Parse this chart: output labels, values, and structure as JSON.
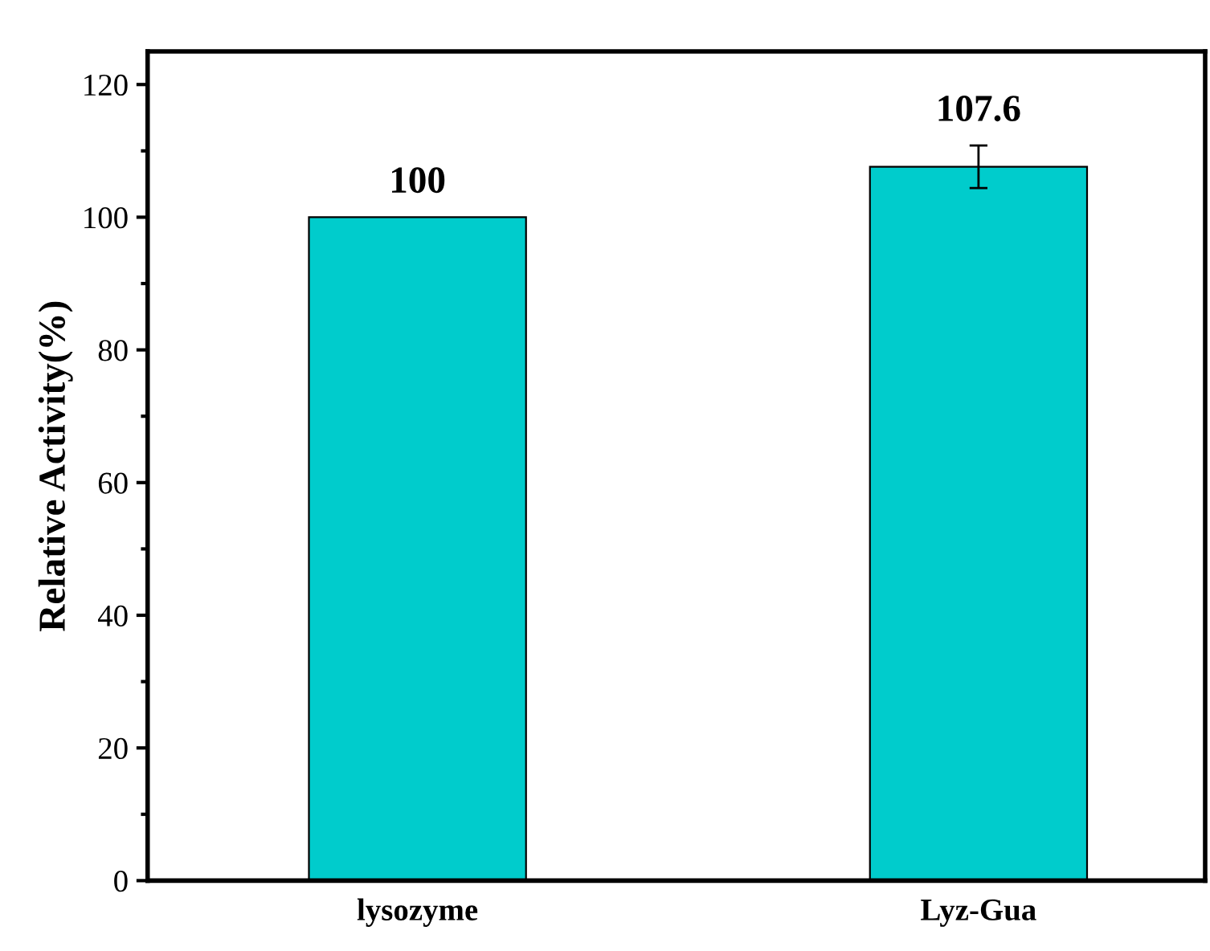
{
  "chart_data": {
    "type": "bar",
    "ylabel": "Relative Activity(%)",
    "categories": [
      "lysozyme",
      "Lyz-Gua"
    ],
    "values": [
      100,
      107.6
    ],
    "errors": [
      null,
      3.2
    ],
    "color": "#00cccc",
    "ylim": [
      0,
      125
    ],
    "yticks": [
      0,
      20,
      40,
      60,
      80,
      100,
      120
    ],
    "data_labels": true,
    "grid": false
  }
}
